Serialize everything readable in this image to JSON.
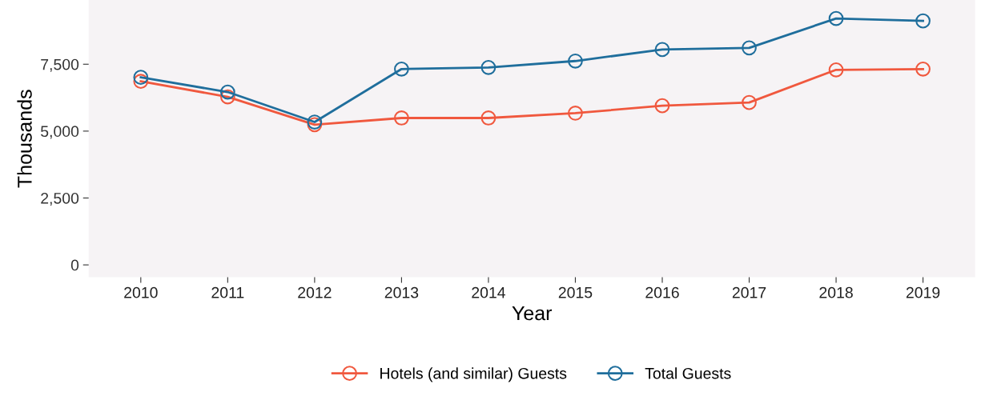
{
  "chart_data": {
    "type": "line",
    "xlabel": "Year",
    "ylabel": "Thousands",
    "categories": [
      "2010",
      "2011",
      "2012",
      "2013",
      "2014",
      "2015",
      "2016",
      "2017",
      "2018",
      "2019"
    ],
    "series": [
      {
        "name": "Hotels (and similar) Guests",
        "color": "#f0583e",
        "values": [
          6860,
          6280,
          5240,
          5490,
          5490,
          5670,
          5950,
          6070,
          7290,
          7320
        ]
      },
      {
        "name": "Total Guests",
        "color": "#1f6e9c",
        "values": [
          7010,
          6460,
          5340,
          7320,
          7380,
          7620,
          8050,
          8110,
          9210,
          9120
        ]
      }
    ],
    "ylim": [
      -460,
      9900
    ],
    "yticks": [
      0,
      {
        "value": 2500,
        "label": "2,500"
      },
      {
        "value": 5000,
        "label": "5,000"
      },
      {
        "value": 7500,
        "label": "7,500"
      }
    ],
    "grid": false,
    "legend": "bottom",
    "marker": "circle",
    "line_style": "solid"
  }
}
